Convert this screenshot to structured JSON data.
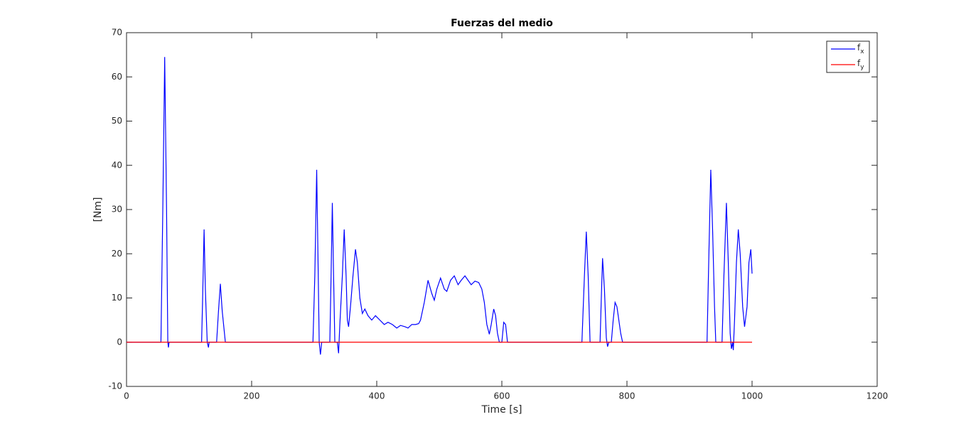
{
  "chart_data": {
    "type": "line",
    "title": "Fuerzas del medio",
    "x_label": "Time [s]",
    "y_label": "[Nm]",
    "xlim": [
      0,
      1200
    ],
    "xticks": [
      0,
      200,
      400,
      600,
      800,
      1000,
      1200
    ],
    "ylim": [
      -10,
      70
    ],
    "yticks": [
      -10,
      0,
      10,
      20,
      30,
      40,
      50,
      60,
      70
    ],
    "grid": false,
    "legend": "upper-right",
    "series": [
      {
        "name": "f_x",
        "color": "#0000ff",
        "x": [
          0,
          55,
          58,
          61,
          64,
          66,
          67,
          68,
          120,
          122,
          124,
          126,
          129,
          131,
          132,
          144,
          147,
          150,
          153,
          158,
          298,
          301,
          304,
          306,
          308,
          310,
          312,
          325,
          327,
          329,
          331,
          333,
          337,
          339,
          341,
          345,
          348,
          351,
          353,
          355,
          358,
          362,
          366,
          369,
          373,
          377,
          381,
          386,
          392,
          398,
          405,
          412,
          418,
          425,
          432,
          438,
          445,
          450,
          456,
          462,
          467,
          470,
          476,
          482,
          488,
          492,
          496,
          502,
          508,
          512,
          518,
          524,
          530,
          535,
          541,
          546,
          551,
          557,
          563,
          568,
          572,
          576,
          580,
          583,
          587,
          590,
          593,
          596,
          600,
          603,
          606,
          609,
          611,
          728,
          732,
          735,
          738,
          741,
          757,
          759,
          761,
          764,
          767,
          769,
          771,
          775,
          778,
          781,
          784,
          790,
          793,
          928,
          931,
          934,
          937,
          940,
          942,
          952,
          955,
          959,
          962,
          965,
          967,
          969,
          970,
          972,
          975,
          978,
          981,
          985,
          988,
          992,
          995,
          998,
          1000
        ],
        "values": [
          0,
          0,
          30,
          64.5,
          30,
          0,
          -1.2,
          0,
          0,
          12,
          25.5,
          12,
          0,
          -1.2,
          0,
          0,
          7,
          13.2,
          7,
          0,
          0,
          15,
          39,
          20,
          0,
          -2.8,
          0,
          0,
          15,
          31.5,
          15,
          0,
          0,
          -2.5,
          4,
          15,
          25.5,
          15,
          5,
          3.5,
          8,
          15,
          21,
          18,
          10,
          6.5,
          7.5,
          6,
          5,
          6,
          5,
          4,
          4.5,
          4,
          3.2,
          3.8,
          3.5,
          3.2,
          4,
          4,
          4.2,
          5,
          9,
          14,
          11,
          9.5,
          12,
          14.5,
          12,
          11.5,
          14,
          15,
          13,
          14,
          15,
          14,
          13,
          13.8,
          13.5,
          12,
          9,
          4,
          1.8,
          4,
          7.5,
          6,
          2,
          0,
          0,
          4.5,
          4,
          0,
          0,
          0,
          15,
          25,
          15,
          0,
          0,
          10,
          19,
          12,
          1,
          -1,
          0,
          0,
          5,
          9,
          8,
          2,
          0,
          0,
          20,
          39,
          25,
          8,
          0,
          0,
          15,
          31.5,
          18,
          2,
          -1.5,
          0,
          -1.8,
          5,
          18,
          25.5,
          20,
          8,
          3.5,
          8,
          18,
          21,
          15.5
        ]
      },
      {
        "name": "f_y",
        "color": "#ff0000",
        "x": [
          0,
          1000
        ],
        "values": [
          0,
          0
        ]
      }
    ]
  }
}
